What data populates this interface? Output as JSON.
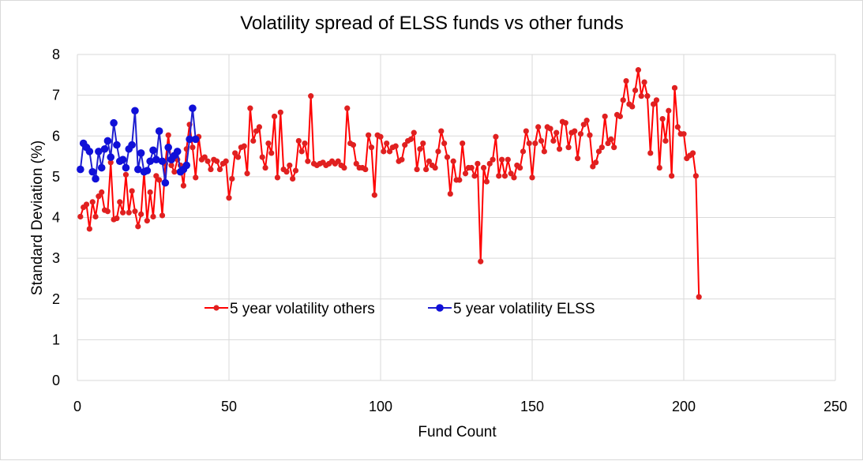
{
  "chart_data": {
    "type": "line",
    "title": "Volatility spread of ELSS funds vs other funds",
    "xlabel": "Fund Count",
    "ylabel": "Standard Deviation (%)",
    "xlim": [
      0,
      250
    ],
    "ylim": [
      0,
      8
    ],
    "x_ticks": [
      0,
      50,
      100,
      150,
      200,
      250
    ],
    "y_ticks": [
      0,
      1,
      2,
      3,
      4,
      5,
      6,
      7,
      8
    ],
    "grid": true,
    "legend_position": "lower-left",
    "series": [
      {
        "name": "5 year volatility others",
        "color": "#ff0000",
        "marker_color": "#e02020",
        "values": [
          4.02,
          4.25,
          4.32,
          3.72,
          4.38,
          4.02,
          4.52,
          4.62,
          4.18,
          4.15,
          5.35,
          3.95,
          3.98,
          4.38,
          4.12,
          5.05,
          4.12,
          4.65,
          4.15,
          3.78,
          4.08,
          5.12,
          3.92,
          4.62,
          4.02,
          5.02,
          4.92,
          4.05,
          5.32,
          6.02,
          5.28,
          5.12,
          5.42,
          5.28,
          4.78,
          5.68,
          6.28,
          5.72,
          4.98,
          5.98,
          5.42,
          5.48,
          5.38,
          5.18,
          5.42,
          5.38,
          5.18,
          5.32,
          5.38,
          4.48,
          4.95,
          5.58,
          5.48,
          5.72,
          5.75,
          5.08,
          6.68,
          5.88,
          6.12,
          6.22,
          5.48,
          5.22,
          5.82,
          5.58,
          6.48,
          4.98,
          6.58,
          5.18,
          5.12,
          5.28,
          4.95,
          5.15,
          5.88,
          5.62,
          5.82,
          5.38,
          6.98,
          5.32,
          5.28,
          5.32,
          5.35,
          5.28,
          5.32,
          5.38,
          5.32,
          5.38,
          5.28,
          5.22,
          6.68,
          5.82,
          5.78,
          5.32,
          5.22,
          5.22,
          5.18,
          6.02,
          5.72,
          4.55,
          6.02,
          5.98,
          5.62,
          5.82,
          5.62,
          5.72,
          5.75,
          5.38,
          5.42,
          5.78,
          5.88,
          5.92,
          6.08,
          5.18,
          5.68,
          5.82,
          5.18,
          5.38,
          5.28,
          5.22,
          5.62,
          6.12,
          5.82,
          5.48,
          4.58,
          5.38,
          4.92,
          4.92,
          5.82,
          5.08,
          5.22,
          5.22,
          5.02,
          5.32,
          2.92,
          5.22,
          4.88,
          5.32,
          5.42,
          5.98,
          5.02,
          5.42,
          5.02,
          5.42,
          5.08,
          4.98,
          5.28,
          5.22,
          5.62,
          6.12,
          5.82,
          4.98,
          5.82,
          6.22,
          5.88,
          5.62,
          6.22,
          6.18,
          5.88,
          6.08,
          5.68,
          6.35,
          6.32,
          5.72,
          6.08,
          6.12,
          5.45,
          6.05,
          6.28,
          6.38,
          6.02,
          5.25,
          5.35,
          5.62,
          5.72,
          6.48,
          5.82,
          5.92,
          5.72,
          6.52,
          6.48,
          6.88,
          7.35,
          6.78,
          6.72,
          7.12,
          7.62,
          6.98,
          7.32,
          6.98,
          5.58,
          6.78,
          6.88,
          5.22,
          6.42,
          5.88,
          6.62,
          5.02,
          7.18,
          6.22,
          6.05,
          6.05,
          5.45,
          5.52,
          5.58,
          5.02,
          2.05
        ]
      },
      {
        "name": "5 year volatility ELSS",
        "color": "#1f1fd0",
        "marker_color": "#1010d8",
        "values": [
          5.18,
          5.82,
          5.72,
          5.62,
          5.12,
          4.95,
          5.62,
          5.22,
          5.68,
          5.88,
          5.48,
          6.32,
          5.78,
          5.38,
          5.42,
          5.22,
          5.68,
          5.78,
          6.62,
          5.18,
          5.58,
          5.12,
          5.15,
          5.38,
          5.65,
          5.42,
          6.12,
          5.38,
          4.85,
          5.72,
          5.42,
          5.52,
          5.62,
          5.12,
          5.18,
          5.28,
          5.92,
          6.68,
          5.92
        ]
      }
    ]
  }
}
